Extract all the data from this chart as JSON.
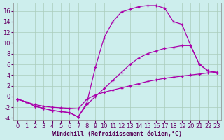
{
  "xlabel": "Windchill (Refroidissement éolien,°C)",
  "bg_color": "#cdeeed",
  "line_color": "#aa00aa",
  "grid_color": "#aaccbb",
  "line1_x": [
    0,
    1,
    2,
    3,
    4,
    5,
    6,
    7,
    8,
    9,
    10,
    11,
    12,
    13,
    14,
    15,
    16,
    17,
    18,
    19,
    20,
    21,
    22,
    23
  ],
  "line1_y": [
    -0.5,
    -1.0,
    -1.8,
    -2.2,
    -2.6,
    -2.8,
    -3.0,
    -3.8,
    -1.2,
    5.5,
    11.0,
    14.0,
    15.8,
    16.3,
    16.8,
    17.0,
    17.0,
    16.5,
    14.0,
    13.5,
    9.5,
    6.0,
    4.8,
    4.5
  ],
  "line2_x": [
    0,
    1,
    2,
    3,
    4,
    5,
    6,
    7,
    8,
    9,
    10,
    11,
    12,
    13,
    14,
    15,
    16,
    17,
    18,
    19,
    20,
    21,
    22,
    23
  ],
  "line2_y": [
    -0.5,
    -1.0,
    -1.8,
    -2.2,
    -2.6,
    -2.8,
    -3.0,
    -3.8,
    -1.5,
    0.0,
    1.5,
    3.0,
    4.5,
    6.0,
    7.2,
    8.0,
    8.5,
    9.0,
    9.2,
    9.5,
    9.5,
    6.0,
    4.8,
    4.5
  ],
  "line3_x": [
    0,
    1,
    2,
    3,
    4,
    5,
    6,
    7,
    8,
    9,
    10,
    11,
    12,
    13,
    14,
    15,
    16,
    17,
    18,
    19,
    20,
    21,
    22,
    23
  ],
  "line3_y": [
    -0.5,
    -1.0,
    -1.5,
    -1.8,
    -2.0,
    -2.1,
    -2.2,
    -2.3,
    -0.5,
    0.3,
    0.8,
    1.2,
    1.6,
    2.0,
    2.4,
    2.8,
    3.1,
    3.4,
    3.6,
    3.8,
    4.0,
    4.2,
    4.4,
    4.5
  ],
  "xlim": [
    -0.5,
    23.5
  ],
  "ylim": [
    -4.5,
    17.5
  ],
  "yticks": [
    -4,
    -2,
    0,
    2,
    4,
    6,
    8,
    10,
    12,
    14,
    16
  ],
  "xticks": [
    0,
    1,
    2,
    3,
    4,
    5,
    6,
    7,
    8,
    9,
    10,
    11,
    12,
    13,
    14,
    15,
    16,
    17,
    18,
    19,
    20,
    21,
    22,
    23
  ],
  "marker": "+",
  "markersize": 3.5,
  "linewidth": 0.9,
  "font_size": 6.0
}
